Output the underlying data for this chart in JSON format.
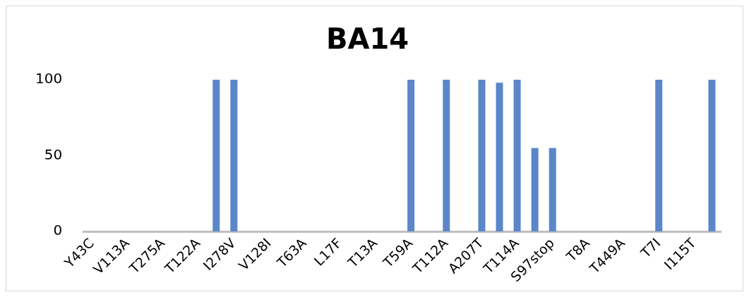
{
  "chart_data": {
    "type": "bar",
    "title": "BA14",
    "categories": [
      "Y43C",
      null,
      "V113A",
      null,
      "T275A",
      null,
      "T122A",
      null,
      "I278V",
      null,
      "V128I",
      null,
      "T63A",
      null,
      "L17F",
      null,
      "T13A",
      null,
      "T59A",
      null,
      "T112A",
      null,
      "A207T",
      null,
      "T114A",
      null,
      "S97stop",
      null,
      "T8A",
      null,
      "T449A",
      null,
      "T7I",
      null,
      "I115T",
      null
    ],
    "values": [
      0,
      0,
      0,
      0,
      0,
      0,
      0,
      100,
      100,
      0,
      0,
      0,
      0,
      0,
      0,
      0,
      0,
      0,
      100,
      0,
      100,
      0,
      100,
      98,
      100,
      55,
      55,
      0,
      0,
      0,
      0,
      0,
      100,
      0,
      0,
      100
    ],
    "color": "#5b87c9",
    "ylim": [
      0,
      100
    ],
    "yticks": [
      0,
      50,
      100
    ],
    "grid": false,
    "legend": false
  }
}
